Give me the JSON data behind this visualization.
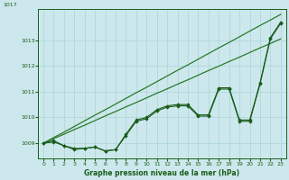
{
  "title": "Graphe pression niveau de la mer (hPa)",
  "background_color": "#cce8ec",
  "grid_color": "#aad4d8",
  "line_color_main": "#1a5c1a",
  "line_color_smooth": "#2a7a2a",
  "x_values": [
    0,
    1,
    2,
    3,
    4,
    5,
    6,
    7,
    8,
    9,
    10,
    11,
    12,
    13,
    14,
    15,
    16,
    17,
    18,
    19,
    20,
    21,
    22,
    23
  ],
  "series1": [
    1009.0,
    1009.1,
    1008.9,
    1008.8,
    1008.8,
    1008.85,
    1008.7,
    1008.75,
    1009.35,
    1009.9,
    1010.0,
    1010.3,
    1010.45,
    1010.5,
    1010.5,
    1010.1,
    1010.1,
    1011.15,
    1011.15,
    1009.9,
    1009.9,
    1011.35,
    1013.1,
    1013.7
  ],
  "series2": [
    1009.0,
    1009.05,
    1008.9,
    1008.75,
    1008.8,
    1008.85,
    1008.7,
    1008.75,
    1009.3,
    1009.85,
    1009.95,
    1010.25,
    1010.4,
    1010.45,
    1010.45,
    1010.05,
    1010.05,
    1011.1,
    1011.1,
    1009.85,
    1009.85,
    1011.3,
    1013.05,
    1013.65
  ],
  "smooth1": [
    1009.0,
    1009.22,
    1009.43,
    1009.65,
    1009.87,
    1010.09,
    1010.3,
    1010.52,
    1010.74,
    1010.96,
    1011.17,
    1011.39,
    1011.61,
    1011.83,
    1012.04,
    1012.26,
    1012.48,
    1012.7,
    1012.91,
    1013.13,
    1013.35,
    1013.57,
    1013.78,
    1014.0
  ],
  "smooth2": [
    1009.0,
    1009.18,
    1009.35,
    1009.53,
    1009.7,
    1009.88,
    1010.06,
    1010.23,
    1010.41,
    1010.58,
    1010.76,
    1010.94,
    1011.11,
    1011.29,
    1011.46,
    1011.64,
    1011.82,
    1011.99,
    1012.17,
    1012.34,
    1012.52,
    1012.7,
    1012.87,
    1013.05
  ],
  "ylim_bottom": 1008.4,
  "ylim_top": 1014.2,
  "yticks": [
    1009,
    1010,
    1011,
    1012,
    1013
  ],
  "ytop_label": "1017",
  "xlim_left": -0.5,
  "xlim_right": 23.5,
  "xticks": [
    0,
    1,
    2,
    3,
    4,
    5,
    6,
    7,
    8,
    9,
    10,
    11,
    12,
    13,
    14,
    15,
    16,
    17,
    18,
    19,
    20,
    21,
    22,
    23
  ]
}
